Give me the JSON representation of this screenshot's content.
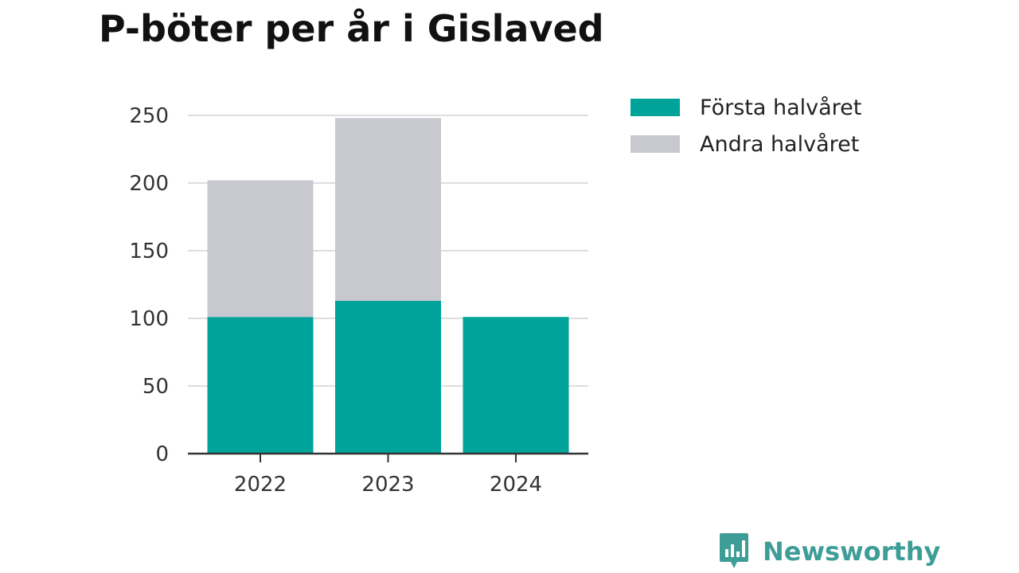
{
  "chart_data": {
    "type": "bar",
    "stacked": true,
    "title": "P-böter per år i Gislaved",
    "categories": [
      "2022",
      "2023",
      "2024"
    ],
    "series": [
      {
        "name": "Första halvåret",
        "color": "#00a39a",
        "values": [
          101,
          113,
          101
        ]
      },
      {
        "name": "Andra halvåret",
        "color": "#c8c8d0",
        "values": [
          101,
          135,
          0
        ]
      }
    ],
    "xlabel": "",
    "ylabel": "",
    "ylim": [
      0,
      250
    ],
    "yticks": [
      "0",
      "50",
      "100",
      "150",
      "200",
      "250"
    ],
    "grid": true,
    "legend_position": "right"
  },
  "branding": {
    "logo_text": "Newsworthy",
    "logo_icon": "bar-chart-speech-bubble-icon",
    "logo_color": "#3f9d97"
  }
}
